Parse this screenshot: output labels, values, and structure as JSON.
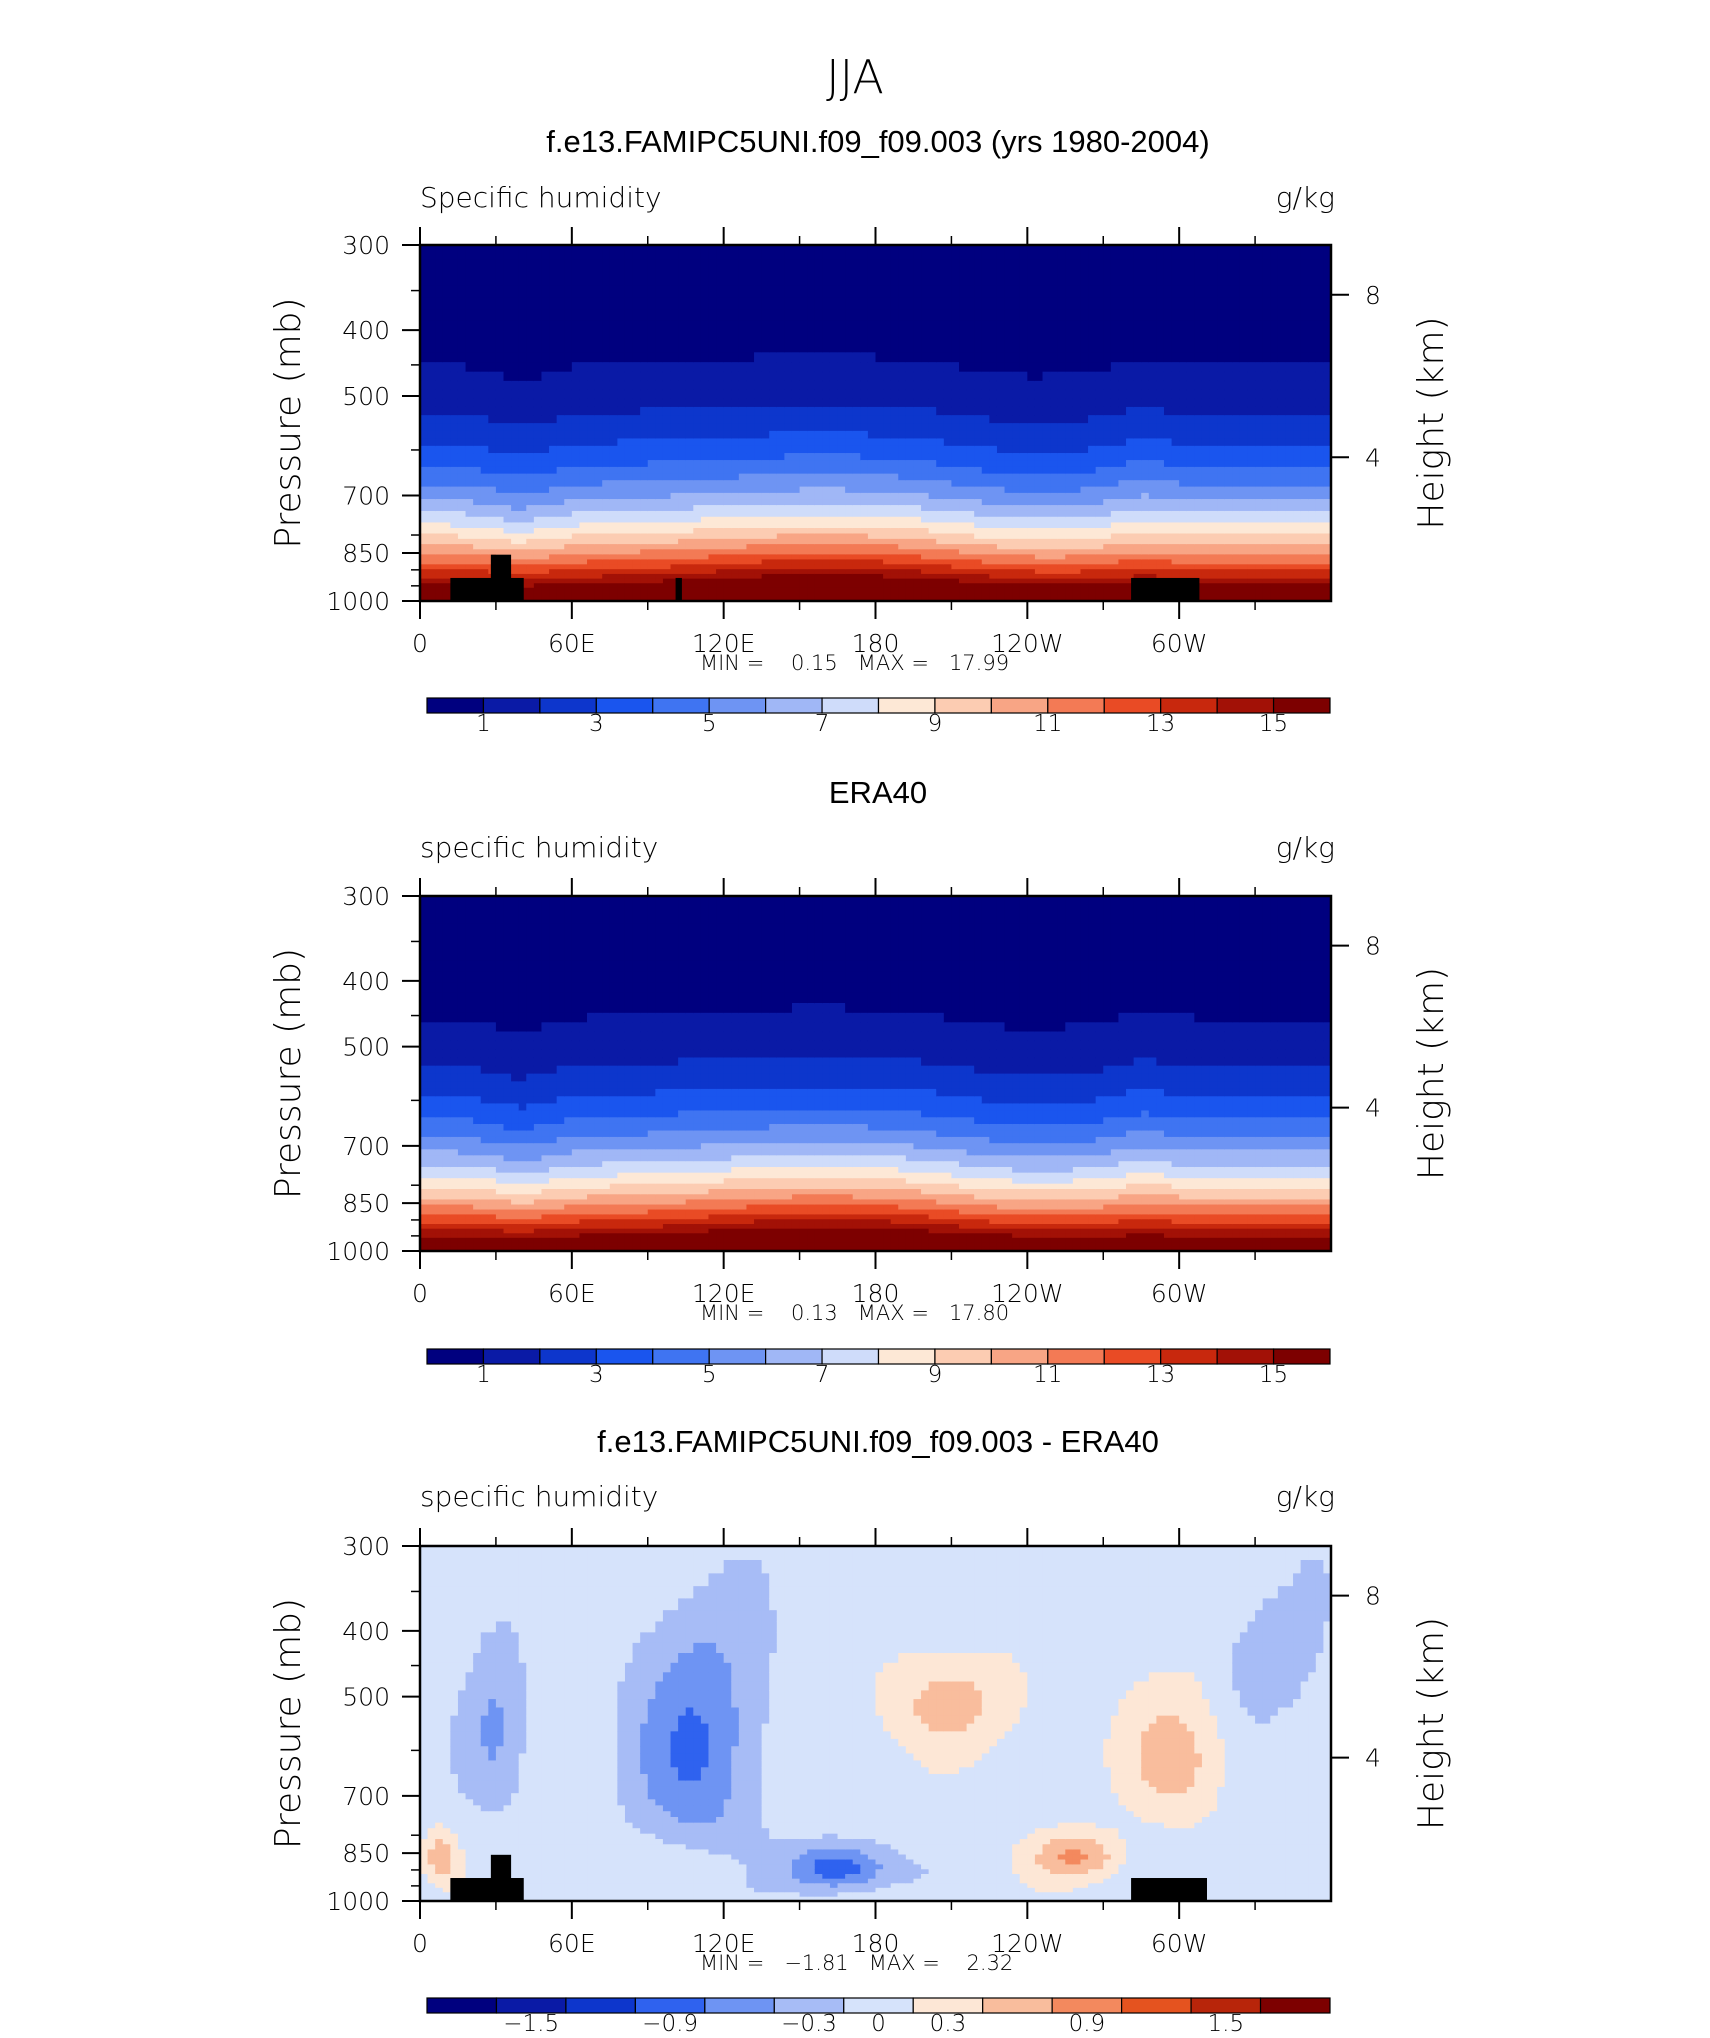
{
  "page_title": "JJA",
  "units": "g/kg",
  "left_axis_label": "Pressure (mb)",
  "right_axis_label": "Height (km)",
  "chart_data": [
    {
      "type": "heatmap",
      "title": "f.e13.FAMIPC5UNI.f09_f09.003 (yrs 1980-2004)",
      "subtitle": "Specific humidity",
      "units": "g/kg",
      "xlabel": "",
      "ylabel": "Pressure (mb)",
      "ylabel_right": "Height (km)",
      "x_ticks": [
        "0",
        "60E",
        "120E",
        "180",
        "120W",
        "60W"
      ],
      "y_ticks": [
        300,
        400,
        500,
        700,
        850,
        1000
      ],
      "y_right_ticks": [
        8,
        4
      ],
      "stats_text": "MIN =    0.15   MAX =   17.99",
      "min": 0.15,
      "max": 17.99,
      "colorbar_labels": [
        "1",
        "3",
        "5",
        "7",
        "9",
        "11",
        "13",
        "15"
      ],
      "colorbar_min": 0,
      "colorbar_max": 16
    },
    {
      "type": "heatmap",
      "title": "ERA40",
      "subtitle": "specific humidity",
      "units": "g/kg",
      "xlabel": "",
      "ylabel": "Pressure (mb)",
      "ylabel_right": "Height (km)",
      "x_ticks": [
        "0",
        "60E",
        "120E",
        "180",
        "120W",
        "60W"
      ],
      "y_ticks": [
        300,
        400,
        500,
        700,
        850,
        1000
      ],
      "y_right_ticks": [
        8,
        4
      ],
      "stats_text": "MIN =    0.13   MAX =   17.80",
      "min": 0.13,
      "max": 17.8,
      "colorbar_labels": [
        "1",
        "3",
        "5",
        "7",
        "9",
        "11",
        "13",
        "15"
      ],
      "colorbar_min": 0,
      "colorbar_max": 16
    },
    {
      "type": "heatmap",
      "title": "f.e13.FAMIPC5UNI.f09_f09.003 - ERA40",
      "subtitle": "specific humidity",
      "units": "g/kg",
      "xlabel": "",
      "ylabel": "Pressure (mb)",
      "ylabel_right": "Height (km)",
      "x_ticks": [
        "0",
        "60E",
        "120E",
        "180",
        "120W",
        "60W"
      ],
      "y_ticks": [
        300,
        400,
        500,
        700,
        850,
        1000
      ],
      "y_right_ticks": [
        8,
        4
      ],
      "stats_text": "MIN =   −1.81   MAX =    2.32",
      "min": -1.81,
      "max": 2.32,
      "colorbar_labels": [
        "−1.5",
        "−0.9",
        "−0.3",
        "0",
        "0.3",
        "0.9",
        "1.5"
      ],
      "colorbar_min": -2.1,
      "colorbar_max": 2.1
    }
  ],
  "colors": {
    "palette": [
      "#00007f",
      "#0a1aa6",
      "#0d36cc",
      "#1a55ee",
      "#3f74f2",
      "#6e94f3",
      "#a0b7f6",
      "#cfdcfa",
      "#fde8d6",
      "#fcccb2",
      "#f8a585",
      "#f37a55",
      "#e94b25",
      "#c8280d",
      "#a21106",
      "#7d0000"
    ],
    "diff_palette": [
      "#00007f",
      "#0a1aa6",
      "#0d36cc",
      "#2f62ef",
      "#6e94f3",
      "#a7bcf6",
      "#d6e3fb",
      "#fde7d6",
      "#f9bd9d",
      "#f3895e",
      "#e5531f",
      "#b8250a",
      "#7d0000"
    ],
    "topography": "#000000"
  }
}
